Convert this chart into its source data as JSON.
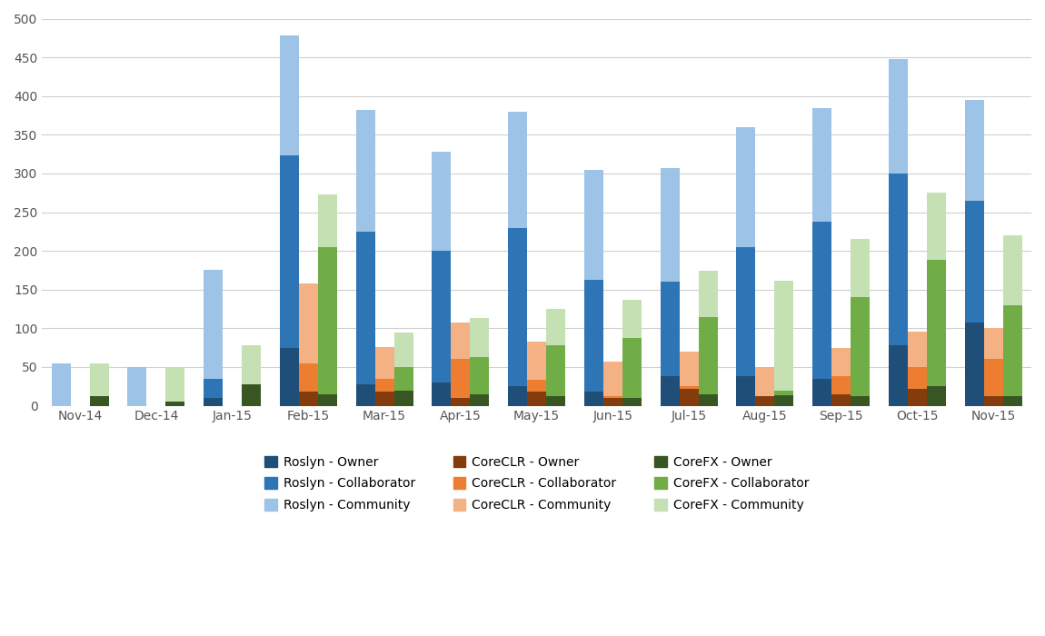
{
  "months": [
    "Nov-14",
    "Dec-14",
    "Jan-15",
    "Feb-15",
    "Mar-15",
    "Apr-15",
    "May-15",
    "Jun-15",
    "Jul-15",
    "Aug-15",
    "Sep-15",
    "Oct-15",
    "Nov-15"
  ],
  "roslyn_owner": [
    0,
    0,
    10,
    75,
    28,
    30,
    25,
    18,
    38,
    38,
    35,
    78,
    108
  ],
  "roslyn_collab_seg": [
    0,
    0,
    25,
    248,
    197,
    170,
    205,
    145,
    122,
    167,
    203,
    222,
    157
  ],
  "roslyn_comm_seg": [
    55,
    50,
    140,
    155,
    157,
    128,
    150,
    142,
    147,
    155,
    147,
    148,
    130
  ],
  "clr_owner": [
    0,
    0,
    0,
    18,
    18,
    10,
    18,
    10,
    22,
    12,
    15,
    22,
    12
  ],
  "clr_collab_seg": [
    0,
    0,
    0,
    37,
    17,
    50,
    15,
    3,
    3,
    1,
    23,
    28,
    48
  ],
  "clr_comm_seg": [
    0,
    0,
    0,
    103,
    41,
    48,
    50,
    44,
    45,
    37,
    37,
    46,
    40
  ],
  "fx_owner": [
    12,
    5,
    28,
    15,
    20,
    15,
    12,
    10,
    15,
    14,
    13,
    25,
    13
  ],
  "fx_collab_seg": [
    0,
    0,
    0,
    190,
    30,
    48,
    66,
    78,
    100,
    6,
    127,
    163,
    117
  ],
  "fx_comm_seg": [
    43,
    45,
    50,
    68,
    45,
    50,
    47,
    49,
    59,
    142,
    75,
    87,
    90
  ],
  "colors": {
    "roslyn_owner": "#1f4e79",
    "roslyn_collaborator": "#2e75b6",
    "roslyn_community": "#9dc3e6",
    "coreclr_owner": "#843c0c",
    "coreclr_collaborator": "#ed7d31",
    "coreclr_community": "#f4b183",
    "corefx_owner": "#375623",
    "corefx_collaborator": "#70ad47",
    "corefx_community": "#c5e0b3"
  },
  "ylim": [
    0,
    500
  ],
  "yticks": [
    0,
    50,
    100,
    150,
    200,
    250,
    300,
    350,
    400,
    450,
    500
  ],
  "background_color": "#ffffff",
  "grid_color": "#d0d0d0",
  "bar_width": 0.25,
  "legend_entries_col1": [
    [
      "Roslyn - Owner",
      "roslyn_owner"
    ],
    [
      "CoreCLR - Owner",
      "coreclr_owner"
    ],
    [
      "CoreFX - Owner",
      "corefx_owner"
    ]
  ],
  "legend_entries_col2": [
    [
      "Roslyn - Collaborator",
      "roslyn_collaborator"
    ],
    [
      "CoreCLR - Collaborator",
      "coreclr_collaborator"
    ],
    [
      "CoreFX - Collaborator",
      "corefx_collaborator"
    ]
  ],
  "legend_entries_col3": [
    [
      "Roslyn - Community",
      "roslyn_community"
    ],
    [
      "CoreCLR - Community",
      "coreclr_community"
    ],
    [
      "CoreFX - Community",
      "corefx_community"
    ]
  ]
}
